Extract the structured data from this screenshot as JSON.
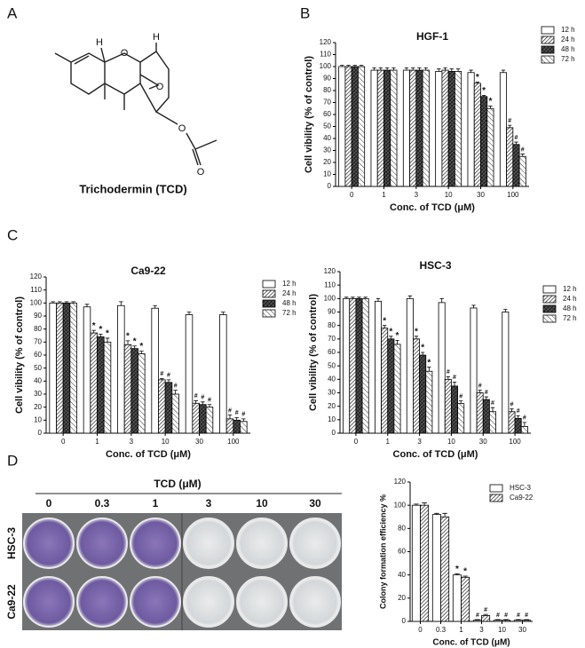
{
  "panel_labels": [
    "A",
    "B",
    "C",
    "D"
  ],
  "structure": {
    "atoms": [
      "H",
      "O",
      "H",
      "O",
      "O",
      "O"
    ],
    "caption": "Trichodermin (TCD)"
  },
  "plate_image": {
    "title": "TCD (μM)",
    "columns": [
      "0",
      "0.3",
      "1",
      "3",
      "10",
      "30"
    ],
    "rows": [
      "HSC-3",
      "Ca9-22"
    ]
  },
  "chart_data": [
    {
      "type": "bar",
      "title": "HGF-1",
      "y_label": "Cell vibility (% of control)",
      "x_label": "Conc. of TCD (μM)",
      "categories": [
        "0",
        "1",
        "3",
        "10",
        "30",
        "100"
      ],
      "ylim": [
        0,
        120
      ],
      "yticks": [
        0,
        10,
        20,
        30,
        40,
        50,
        60,
        70,
        80,
        90,
        100,
        110,
        120
      ],
      "legend": "right",
      "series": [
        {
          "name": "12 h",
          "color": "#ffffff",
          "hatch": "none",
          "values": [
            100,
            97,
            97,
            96,
            95,
            95
          ],
          "errors": [
            1,
            2,
            2,
            2,
            2,
            2
          ],
          "markers": [
            null,
            null,
            null,
            null,
            null,
            null
          ]
        },
        {
          "name": "24 h",
          "color": "#ffffff",
          "hatch": "diag",
          "values": [
            100,
            97,
            97,
            97,
            86,
            49
          ],
          "errors": [
            1,
            2,
            2,
            2,
            1,
            2
          ],
          "markers": [
            null,
            null,
            null,
            null,
            "*",
            "#"
          ]
        },
        {
          "name": "48 h",
          "color": "#ffffff",
          "hatch": "cross",
          "values": [
            100,
            97,
            97,
            96,
            75,
            35
          ],
          "errors": [
            1,
            2,
            2,
            2,
            1,
            2
          ],
          "markers": [
            null,
            null,
            null,
            null,
            "*",
            "#"
          ]
        },
        {
          "name": "72 h",
          "color": "#ffffff",
          "hatch": "light",
          "values": [
            100,
            97,
            97,
            96,
            65,
            25
          ],
          "errors": [
            1,
            2,
            2,
            2,
            2,
            2
          ],
          "markers": [
            null,
            null,
            null,
            null,
            "*",
            "#"
          ]
        }
      ]
    },
    {
      "type": "bar",
      "title": "Ca9-22",
      "y_label": "Cell vibility (% of control)",
      "x_label": "Conc. of TCD (μM)",
      "categories": [
        "0",
        "1",
        "3",
        "10",
        "30",
        "100"
      ],
      "ylim": [
        0,
        120
      ],
      "yticks": [
        0,
        10,
        20,
        30,
        40,
        50,
        60,
        70,
        80,
        90,
        100,
        110,
        120
      ],
      "legend": "right",
      "series": [
        {
          "name": "12 h",
          "color": "#ffffff",
          "hatch": "none",
          "values": [
            100,
            97,
            98,
            96,
            91,
            91
          ],
          "errors": [
            1,
            2,
            3,
            2,
            2,
            2
          ],
          "markers": [
            null,
            null,
            null,
            null,
            null,
            null
          ]
        },
        {
          "name": "24 h",
          "color": "#ffffff",
          "hatch": "diag",
          "values": [
            100,
            77,
            68,
            41,
            23,
            11
          ],
          "errors": [
            1,
            2,
            3,
            1,
            2,
            3
          ],
          "markers": [
            null,
            "*",
            "*",
            "#",
            "#",
            "#"
          ]
        },
        {
          "name": "48 h",
          "color": "#ffffff",
          "hatch": "cross",
          "values": [
            100,
            74,
            65,
            39,
            22,
            10
          ],
          "errors": [
            1,
            2,
            2,
            2,
            2,
            2
          ],
          "markers": [
            null,
            "*",
            "*",
            "#",
            "#",
            "#"
          ]
        },
        {
          "name": "72 h",
          "color": "#ffffff",
          "hatch": "light",
          "values": [
            100,
            70,
            61,
            30,
            20,
            9
          ],
          "errors": [
            1,
            3,
            2,
            3,
            2,
            2
          ],
          "markers": [
            null,
            "*",
            "*",
            "#",
            "#",
            "#"
          ]
        }
      ]
    },
    {
      "type": "bar",
      "title": "HSC-3",
      "y_label": "Cell vibility (% of control)",
      "x_label": "Conc. of TCD (μM)",
      "categories": [
        "0",
        "1",
        "3",
        "10",
        "30",
        "100"
      ],
      "ylim": [
        0,
        120
      ],
      "yticks": [
        0,
        10,
        20,
        30,
        40,
        50,
        60,
        70,
        80,
        90,
        100,
        110,
        120
      ],
      "legend": "right",
      "series": [
        {
          "name": "12 h",
          "color": "#ffffff",
          "hatch": "none",
          "values": [
            100,
            98,
            100,
            97,
            93,
            90
          ],
          "errors": [
            1,
            2,
            2,
            3,
            2,
            2
          ],
          "markers": [
            null,
            null,
            null,
            null,
            null,
            null
          ]
        },
        {
          "name": "24 h",
          "color": "#ffffff",
          "hatch": "diag",
          "values": [
            100,
            78,
            70,
            40,
            30,
            16
          ],
          "errors": [
            1,
            2,
            2,
            2,
            2,
            2
          ],
          "markers": [
            null,
            "*",
            "*",
            "#",
            "#",
            "#"
          ]
        },
        {
          "name": "48 h",
          "color": "#ffffff",
          "hatch": "cross",
          "values": [
            100,
            70,
            58,
            35,
            25,
            11
          ],
          "errors": [
            1,
            2,
            2,
            3,
            2,
            2
          ],
          "markers": [
            null,
            "*",
            "*",
            "#",
            "#",
            "#"
          ]
        },
        {
          "name": "72 h",
          "color": "#ffffff",
          "hatch": "light",
          "values": [
            100,
            66,
            46,
            22,
            16,
            5
          ],
          "errors": [
            1,
            3,
            3,
            2,
            3,
            3
          ],
          "markers": [
            null,
            "*",
            "*",
            "#",
            "#",
            "#"
          ]
        }
      ]
    },
    {
      "type": "bar",
      "y_label": "Colony formation efficiency %",
      "x_label": "Conc. of TCD (μM)",
      "categories": [
        "0",
        "0.3",
        "1",
        "3",
        "10",
        "30"
      ],
      "ylim": [
        0,
        120
      ],
      "yticks": [
        0,
        20,
        40,
        60,
        80,
        100,
        120
      ],
      "legend": "upper right",
      "series": [
        {
          "name": "HSC-3",
          "color": "#ffffff",
          "hatch": "none",
          "values": [
            100,
            92,
            40,
            1,
            1,
            1
          ],
          "errors": [
            1,
            1,
            1,
            0.5,
            0.5,
            0.5
          ],
          "markers": [
            null,
            null,
            "*",
            "#",
            "#",
            "#"
          ]
        },
        {
          "name": "Ca9-22",
          "color": "#ffffff",
          "hatch": "diag",
          "values": [
            100,
            90,
            38,
            5,
            1,
            1
          ],
          "errors": [
            2,
            3,
            1,
            1,
            0.5,
            0.5
          ],
          "markers": [
            null,
            null,
            "*",
            "#",
            "#",
            "#"
          ]
        }
      ]
    }
  ]
}
